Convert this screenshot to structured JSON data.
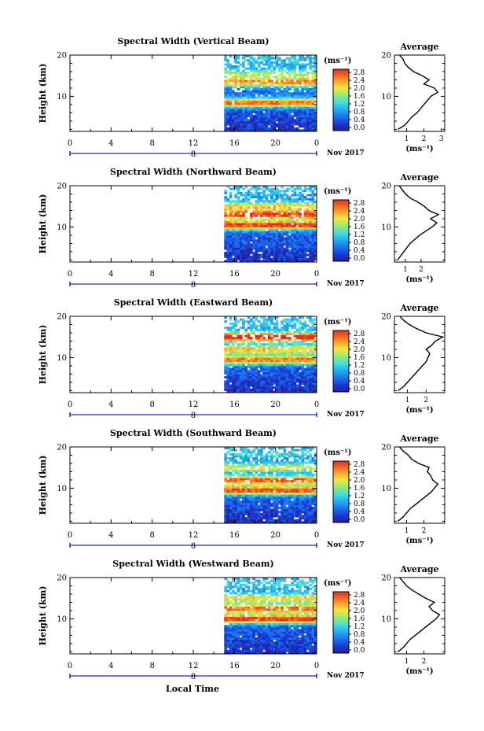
{
  "chart_data": [
    {
      "type": "heatmap",
      "title": "Spectral Width (Vertical Beam)",
      "ylabel": "Height (km)",
      "ylim": [
        1.5,
        20
      ],
      "yticks": [
        10,
        20
      ],
      "xlim": [
        0,
        24
      ],
      "xticks": [
        "0",
        "4",
        "8",
        "12",
        "16",
        "20",
        "0"
      ],
      "date_label": "8",
      "month_label": "Nov 2017",
      "colorbar_unit": "(ms⁻¹)",
      "colorbar_range": [
        0.0,
        3.0
      ],
      "colorbar_ticks": [
        "2.8",
        "2.4",
        "2.0",
        "1.6",
        "1.2",
        "0.8",
        "0.4",
        "0.0"
      ],
      "data_start_hour": 15,
      "features": [
        {
          "height": 8.5,
          "level": 2.6
        },
        {
          "height": 13.5,
          "level": 2.2
        },
        {
          "height": 15.5,
          "level": 1.4
        },
        {
          "height": 18.5,
          "level": 0.7
        }
      ],
      "profile": {
        "title": "Average",
        "xlabel": "(ms⁻¹)",
        "xticks": [
          1,
          2,
          3
        ],
        "xlim": [
          0.3,
          3.2
        ],
        "height": [
          2,
          3,
          4,
          5,
          6,
          7,
          8,
          9,
          10,
          11,
          12,
          13,
          14,
          15,
          16,
          17,
          18,
          19,
          20
        ],
        "value": [
          0.5,
          0.9,
          1.1,
          1.3,
          1.6,
          1.8,
          2.0,
          2.2,
          2.4,
          2.8,
          2.6,
          2.0,
          2.3,
          1.9,
          1.4,
          1.1,
          0.9,
          0.8,
          0.6
        ]
      }
    },
    {
      "type": "heatmap",
      "title": "Spectral Width (Northward Beam)",
      "ylabel": "Height (km)",
      "ylim": [
        1.5,
        20
      ],
      "yticks": [
        10,
        20
      ],
      "xlim": [
        0,
        24
      ],
      "xticks": [
        "0",
        "4",
        "8",
        "12",
        "16",
        "20",
        "0"
      ],
      "date_label": "8",
      "month_label": "Nov 2017",
      "colorbar_unit": "(ms⁻¹)",
      "colorbar_range": [
        0.0,
        3.0
      ],
      "colorbar_ticks": [
        "2.8",
        "2.4",
        "2.0",
        "1.6",
        "1.2",
        "0.8",
        "0.4",
        "0.0"
      ],
      "data_start_hour": 15,
      "features": [
        {
          "height": 10.5,
          "level": 2.8
        },
        {
          "height": 13.0,
          "level": 2.6
        },
        {
          "height": 15.0,
          "level": 1.8
        },
        {
          "height": 19.0,
          "level": 0.7
        }
      ],
      "profile": {
        "title": "Average",
        "xlabel": "(ms⁻¹)",
        "xticks": [
          1,
          2
        ],
        "xlim": [
          0.3,
          3.5
        ],
        "height": [
          2,
          3,
          4,
          5,
          6,
          7,
          8,
          9,
          10,
          11,
          12,
          13,
          14,
          15,
          16,
          17,
          18,
          19,
          20
        ],
        "value": [
          0.5,
          0.7,
          0.9,
          1.1,
          1.3,
          1.6,
          1.9,
          2.3,
          2.7,
          3.0,
          2.6,
          3.1,
          2.5,
          2.2,
          1.8,
          1.3,
          1.0,
          0.8,
          0.6
        ]
      }
    },
    {
      "type": "heatmap",
      "title": "Spectral Width (Eastward Beam)",
      "ylabel": "Height (km)",
      "ylim": [
        1.5,
        20
      ],
      "yticks": [
        10,
        20
      ],
      "xlim": [
        0,
        24
      ],
      "xticks": [
        "0",
        "4",
        "8",
        "12",
        "16",
        "20",
        "0"
      ],
      "date_label": "8",
      "month_label": "Nov 2017",
      "colorbar_unit": "(ms⁻¹)",
      "colorbar_range": [
        0.0,
        3.0
      ],
      "colorbar_ticks": [
        "2.8",
        "2.4",
        "2.0",
        "1.6",
        "1.2",
        "0.8",
        "0.4",
        "0.0"
      ],
      "data_start_hour": 15,
      "features": [
        {
          "height": 9.5,
          "level": 2.5
        },
        {
          "height": 12.0,
          "level": 2.0
        },
        {
          "height": 15.0,
          "level": 2.9
        },
        {
          "height": 18.5,
          "level": 0.8
        }
      ],
      "profile": {
        "title": "Average",
        "xlabel": "(ms⁻¹)",
        "xticks": [
          1,
          2
        ],
        "xlim": [
          0.3,
          3.0
        ],
        "height": [
          2,
          3,
          4,
          5,
          6,
          7,
          8,
          9,
          10,
          11,
          12,
          13,
          14,
          15,
          16,
          17,
          18,
          19,
          20
        ],
        "value": [
          0.5,
          0.8,
          1.0,
          1.2,
          1.4,
          1.6,
          1.8,
          2.0,
          2.1,
          2.2,
          2.0,
          2.3,
          2.5,
          2.9,
          2.0,
          1.5,
          1.1,
          0.8,
          0.6
        ]
      }
    },
    {
      "type": "heatmap",
      "title": "Spectral Width (Southward Beam)",
      "ylabel": "Height (km)",
      "ylim": [
        1.5,
        20
      ],
      "yticks": [
        10,
        20
      ],
      "xlim": [
        0,
        24
      ],
      "xticks": [
        "0",
        "4",
        "8",
        "12",
        "16",
        "20",
        "0"
      ],
      "date_label": "8",
      "month_label": "Nov 2017",
      "colorbar_unit": "(ms⁻¹)",
      "colorbar_range": [
        0.0,
        3.0
      ],
      "colorbar_ticks": [
        "2.8",
        "2.4",
        "2.0",
        "1.6",
        "1.2",
        "0.8",
        "0.4",
        "0.0"
      ],
      "data_start_hour": 15,
      "features": [
        {
          "height": 9.5,
          "level": 2.7
        },
        {
          "height": 12.0,
          "level": 2.5
        },
        {
          "height": 15.0,
          "level": 1.6
        },
        {
          "height": 18.5,
          "level": 0.8
        }
      ],
      "profile": {
        "title": "Average",
        "xlabel": "(ms⁻¹)",
        "xticks": [
          1,
          2
        ],
        "xlim": [
          0.3,
          3.2
        ],
        "height": [
          2,
          3,
          4,
          5,
          6,
          7,
          8,
          9,
          10,
          11,
          12,
          13,
          14,
          15,
          16,
          17,
          18,
          19,
          20
        ],
        "value": [
          0.5,
          0.8,
          1.0,
          1.2,
          1.5,
          1.8,
          2.1,
          2.4,
          2.6,
          2.8,
          2.5,
          2.4,
          2.2,
          2.3,
          1.7,
          1.3,
          1.1,
          0.8,
          0.6
        ]
      }
    },
    {
      "type": "heatmap",
      "title": "Spectral Width (Westward Beam)",
      "ylabel": "Height (km)",
      "ylim": [
        1.5,
        20
      ],
      "yticks": [
        10,
        20
      ],
      "xlim": [
        0,
        24
      ],
      "xticks": [
        "0",
        "4",
        "8",
        "12",
        "16",
        "20",
        "0"
      ],
      "date_label": "8",
      "month_label": "Nov 2017",
      "colorbar_unit": "(ms⁻¹)",
      "colorbar_range": [
        0.0,
        3.0
      ],
      "colorbar_ticks": [
        "2.8",
        "2.4",
        "2.0",
        "1.6",
        "1.2",
        "0.8",
        "0.4",
        "0.0"
      ],
      "data_start_hour": 15,
      "features": [
        {
          "height": 10.0,
          "level": 2.8
        },
        {
          "height": 12.5,
          "level": 2.4
        },
        {
          "height": 15.0,
          "level": 1.8
        },
        {
          "height": 18.5,
          "level": 0.8
        }
      ],
      "profile": {
        "title": "Average",
        "xlabel": "(ms⁻¹)",
        "xticks": [
          1,
          2
        ],
        "xlim": [
          0.3,
          3.2
        ],
        "height": [
          2,
          3,
          4,
          5,
          6,
          7,
          8,
          9,
          10,
          11,
          12,
          13,
          14,
          15,
          16,
          17,
          18,
          19,
          20
        ],
        "value": [
          0.5,
          0.8,
          1.0,
          1.2,
          1.5,
          1.8,
          2.1,
          2.4,
          2.7,
          2.9,
          2.5,
          2.3,
          2.6,
          2.1,
          1.7,
          1.3,
          1.0,
          0.8,
          0.6
        ]
      }
    }
  ],
  "footer": {
    "xlabel": "Local Time"
  },
  "colors": {
    "axis": "#000000",
    "range_bar": "#1f2fb0"
  }
}
